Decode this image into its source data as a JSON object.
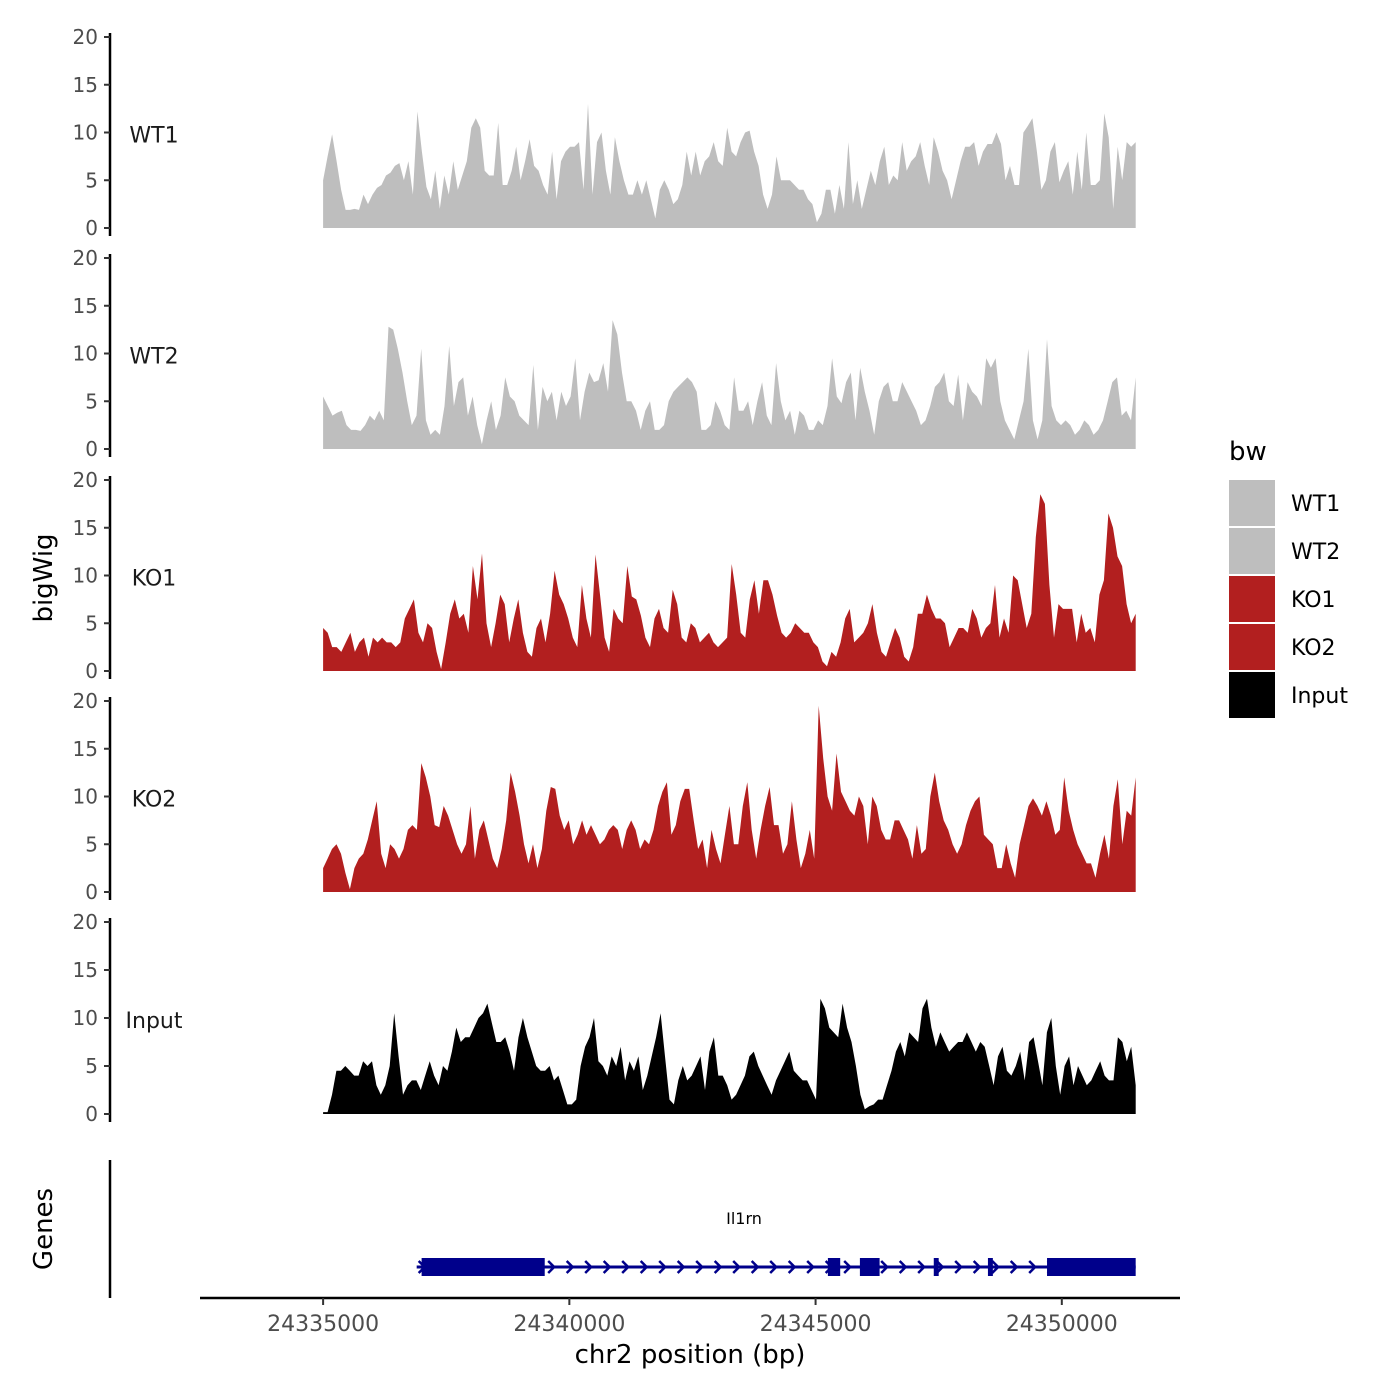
{
  "chart_data": {
    "type": "area",
    "title": "",
    "xlabel": "chr2 position (bp)",
    "ylabel": "bigWig",
    "genes_label": "Genes",
    "xlim": [
      24332500,
      24352400
    ],
    "x_ticks": [
      24335000,
      24340000,
      24345000,
      24350000
    ],
    "x_tick_labels": [
      "24335000",
      "24340000",
      "24345000",
      "24350000"
    ],
    "ylim": [
      0,
      20
    ],
    "y_ticks": [
      0,
      5,
      10,
      15,
      20
    ],
    "y_tick_labels": [
      "0",
      "5",
      "10",
      "15",
      "20"
    ],
    "legend": {
      "title": "bw",
      "position": "right",
      "entries": [
        {
          "label": "WT1",
          "color": "#bebebe"
        },
        {
          "label": "WT2",
          "color": "#bebebe"
        },
        {
          "label": "KO1",
          "color": "#b21f1f"
        },
        {
          "label": "KO2",
          "color": "#b21f1f"
        },
        {
          "label": "Input",
          "color": "#000000"
        }
      ]
    },
    "x_start": 24335000,
    "x_end": 24351500,
    "series": [
      {
        "name": "WT1",
        "color": "#bebebe",
        "values": [
          5,
          7.5,
          9.8,
          7,
          4,
          1.9,
          1.9,
          2,
          1.9,
          3.5,
          2.5,
          3.5,
          4.2,
          4.5,
          5.5,
          5.8,
          6.5,
          6.8,
          5,
          7,
          3.5,
          12.2,
          8,
          4.3,
          3,
          6,
          2,
          5.5,
          3.5,
          7,
          4,
          5.5,
          7,
          10.5,
          11.5,
          10.5,
          6,
          5.5,
          5.5,
          11,
          4.5,
          4.5,
          6,
          8.5,
          5,
          7,
          9.3,
          6.5,
          6,
          4.5,
          3.5,
          8,
          3,
          7,
          8,
          8.5,
          8.5,
          9,
          4,
          13,
          3.5,
          9,
          10,
          6,
          3.5,
          9.5,
          7,
          5,
          3.5,
          3.5,
          5,
          3.5,
          5,
          3,
          1,
          4,
          5,
          4,
          2.5,
          3,
          4.5,
          8,
          5.5,
          8,
          5.5,
          7,
          7.5,
          9,
          7,
          6.5,
          10.5,
          8,
          7.5,
          9,
          10,
          10.2,
          8,
          6.5,
          3.5,
          2,
          3.5,
          7.5,
          5,
          5,
          5,
          4.5,
          4,
          4,
          3,
          2.5,
          0.6,
          1.5,
          4,
          4,
          1.5,
          4.5,
          2,
          9,
          2.5,
          5,
          2,
          4,
          6,
          4.5,
          7,
          8.5,
          4.5,
          5.5,
          5,
          9,
          6,
          7,
          7.5,
          9,
          6.5,
          4.5,
          9.5,
          8,
          6,
          5,
          3,
          5,
          7,
          8.5,
          8.5,
          9,
          6.5,
          8,
          8.8,
          8.8,
          10,
          8.8,
          5,
          6.5,
          4.5,
          4.5,
          10,
          10.7,
          11.5,
          8,
          4,
          5,
          8,
          9,
          4.8,
          6,
          7,
          3.5,
          8,
          4,
          10,
          4.5,
          4.5,
          5,
          12,
          9.5,
          2,
          8.5,
          5,
          9,
          8.5,
          9
        ],
        "label_y": 10
      },
      {
        "name": "WT2",
        "color": "#bebebe",
        "values": [
          5.5,
          4.5,
          3.5,
          3.8,
          4,
          2.5,
          2,
          2,
          1.9,
          2.5,
          3.5,
          3,
          4,
          3,
          12.8,
          12.5,
          10.5,
          8,
          5,
          2.5,
          3.5,
          10.5,
          3,
          1.5,
          2,
          1.5,
          4.5,
          10.8,
          4.5,
          7,
          7.5,
          3.5,
          5.5,
          2.5,
          0.5,
          3,
          5,
          2,
          3.5,
          7.5,
          5.5,
          5,
          3.5,
          3,
          2.5,
          8.8,
          2,
          6.5,
          5,
          6,
          3,
          6,
          4.5,
          5.5,
          9.5,
          3,
          6,
          8,
          7,
          7.2,
          9,
          6,
          13.5,
          12,
          8,
          5,
          5,
          4,
          2,
          4,
          5,
          2,
          2,
          2.5,
          5,
          6,
          6.5,
          7,
          7.5,
          7,
          6,
          2,
          2,
          2.5,
          5,
          4,
          2.5,
          2,
          7.5,
          4,
          4,
          5,
          2.5,
          5,
          7,
          3.5,
          2.5,
          9,
          5,
          3,
          4,
          1.5,
          4,
          3.5,
          2,
          2,
          3,
          2.5,
          4.5,
          9.5,
          5.5,
          4.8,
          7,
          8,
          3,
          8.5,
          6,
          4,
          1.5,
          5,
          6.5,
          7,
          5,
          5,
          7,
          6,
          5,
          4,
          2.5,
          3,
          4.5,
          6.5,
          7,
          8,
          5,
          4.5,
          7.8,
          3,
          7,
          6,
          5.5,
          4.5,
          9.5,
          8.5,
          9.5,
          5,
          3,
          2,
          1,
          3,
          5,
          10.5,
          3,
          1,
          3,
          11.5,
          4.5,
          3,
          2.5,
          3,
          2.5,
          1.5,
          2,
          3,
          2.5,
          1.5,
          2,
          3,
          5,
          7,
          7.5,
          3.5,
          4,
          3,
          7.5
        ]
      },
      {
        "name": "KO1",
        "color": "#b21f1f",
        "values": [
          4.5,
          4,
          2.5,
          2.5,
          2,
          3,
          4,
          2,
          3,
          3.5,
          1.5,
          3.5,
          3,
          3.5,
          3,
          3,
          2.5,
          3,
          5.5,
          6.5,
          7.5,
          4,
          3,
          5,
          4.5,
          2,
          0.2,
          3,
          6,
          7.5,
          5.5,
          6,
          4,
          11,
          7.5,
          12.3,
          5,
          2.5,
          5,
          8,
          7,
          3,
          5.5,
          7.5,
          4,
          2,
          1.5,
          4.5,
          5.5,
          3,
          6,
          10.5,
          8,
          7,
          5.5,
          3.5,
          2.5,
          9,
          5.5,
          3.5,
          12.2,
          8,
          3.5,
          2,
          6.5,
          5.5,
          5,
          11,
          7.8,
          7.5,
          5.8,
          3.5,
          2.5,
          5.5,
          6.5,
          4.5,
          4,
          8.5,
          7,
          3.5,
          3,
          5,
          4.5,
          3,
          3.5,
          4,
          3,
          2.5,
          3,
          3.5,
          11.2,
          8,
          4,
          3.5,
          7.5,
          9.5,
          6,
          9.5,
          9.5,
          8,
          5.8,
          4,
          3.5,
          4,
          5,
          4.5,
          4,
          4,
          3,
          2.5,
          1,
          0.5,
          2,
          1.5,
          3,
          5.5,
          6.5,
          3,
          3.5,
          4,
          5,
          7,
          4,
          2,
          1.5,
          3,
          4.5,
          3.5,
          1.5,
          1,
          2.5,
          6,
          6,
          8,
          6.5,
          5.5,
          5.5,
          5,
          2.5,
          3.5,
          4.5,
          4.5,
          4,
          6.5,
          5.5,
          3.5,
          4.5,
          5,
          9,
          3.5,
          5.5,
          4,
          10,
          9.5,
          7,
          4.5,
          6,
          14,
          18.5,
          17.5,
          9,
          3.5,
          7,
          6.5,
          6.5,
          6.5,
          3,
          6,
          4,
          4.5,
          3,
          8,
          9.5,
          16.5,
          15,
          12,
          11,
          7,
          5,
          6
        ]
      },
      {
        "name": "KO2",
        "color": "#b21f1f",
        "values": [
          2.5,
          3.5,
          4.5,
          5,
          4,
          2,
          0.3,
          2.5,
          3.5,
          4,
          5.5,
          7.5,
          9.5,
          4,
          2.5,
          5,
          4.5,
          3.5,
          4.5,
          6.5,
          7,
          6.5,
          13.5,
          12,
          10,
          7,
          6.8,
          9,
          8,
          6.5,
          5,
          4,
          5,
          9,
          3.5,
          6.5,
          7.5,
          5.5,
          3.5,
          2.5,
          4.5,
          7.5,
          12.5,
          10.5,
          8,
          5,
          3,
          5,
          2.5,
          4.5,
          8.5,
          11,
          10.8,
          8,
          6.5,
          7.5,
          5,
          6,
          7.5,
          6,
          7,
          6,
          5,
          5.5,
          6.5,
          7,
          6.5,
          4.5,
          6.5,
          7.5,
          6.5,
          4.5,
          5.5,
          5,
          6.5,
          9,
          10.5,
          11.5,
          6,
          7,
          9.5,
          10.8,
          10.8,
          7.5,
          4.5,
          5.5,
          2.5,
          6.5,
          4.5,
          3,
          6,
          9,
          5,
          5,
          9,
          11.5,
          6.5,
          3.5,
          6.5,
          9,
          11,
          7,
          7,
          4,
          5,
          9.5,
          5.5,
          2.5,
          4,
          6.5,
          3.5,
          19.5,
          14,
          10,
          8.5,
          14.5,
          10.5,
          9.5,
          8.5,
          8,
          10,
          9,
          5,
          10,
          9,
          6.5,
          5.5,
          5.5,
          7.5,
          7.5,
          6.5,
          5.5,
          3.5,
          7,
          4,
          4.5,
          10,
          12.5,
          9.5,
          7.5,
          6.5,
          5,
          4,
          5,
          7,
          8.5,
          9.5,
          10,
          6,
          5.5,
          5,
          2.5,
          2.5,
          5,
          3,
          1.5,
          5,
          7,
          9,
          9.8,
          9,
          8,
          9.5,
          8,
          6,
          6.5,
          12,
          8.5,
          6.5,
          5,
          4,
          3,
          3,
          1.5,
          4,
          6,
          3.5,
          9,
          11.8,
          5,
          8.5,
          8,
          12
        ]
      },
      {
        "name": "Input",
        "color": "#000000",
        "values": [
          0.2,
          0.2,
          2,
          4.5,
          4.5,
          5,
          4.5,
          4,
          4,
          5.5,
          5,
          5.5,
          3,
          2,
          3,
          5,
          10.5,
          6,
          2,
          3,
          3.5,
          3.5,
          2.5,
          4,
          5.5,
          4,
          3,
          5,
          4.5,
          6.5,
          9,
          7.5,
          8,
          8,
          9,
          10,
          10.5,
          11.5,
          9.5,
          7.5,
          7.5,
          8,
          6.5,
          4.5,
          8,
          10,
          8,
          6.5,
          5,
          4.5,
          4.5,
          5,
          3.5,
          4,
          2.5,
          1,
          1,
          1.5,
          5,
          7,
          8,
          10,
          5.5,
          5,
          4,
          6,
          5,
          7,
          3.5,
          5.5,
          4.5,
          6,
          2.5,
          4,
          6,
          8,
          10.5,
          6,
          1.5,
          1,
          3.5,
          5,
          3.5,
          4,
          5,
          6,
          2.5,
          6.5,
          8,
          4,
          4,
          3,
          1.5,
          2,
          3,
          4,
          6,
          6.5,
          5,
          4,
          3,
          2,
          3.5,
          4.5,
          5.5,
          6.5,
          4.5,
          4,
          3.5,
          3.5,
          2.5,
          1.5,
          12,
          11,
          9,
          8.5,
          8,
          11.5,
          9,
          7.5,
          5,
          2,
          0.5,
          0.8,
          1,
          1.5,
          1.5,
          3,
          4.5,
          6.5,
          7.5,
          6,
          8.5,
          8,
          7.5,
          11,
          12,
          9,
          7,
          8.5,
          7.5,
          6.5,
          7,
          7.5,
          7.5,
          8.5,
          7.5,
          6.5,
          7.5,
          7,
          5,
          3,
          6,
          7,
          4.5,
          4,
          5,
          6.5,
          3.5,
          7.5,
          8,
          5.5,
          3,
          8.5,
          10,
          5,
          2,
          5,
          6,
          3,
          5,
          4,
          3,
          3.5,
          4.5,
          5.5,
          4,
          3.5,
          3.5,
          8,
          7.5,
          5.5,
          7,
          3
        ]
      }
    ],
    "gene": {
      "name": "Il1rn",
      "strand": "+",
      "start": 24336900,
      "end": 24351500,
      "color": "#00008b",
      "exons": [
        [
          24337000,
          24339500
        ],
        [
          24345250,
          24345500
        ],
        [
          24345900,
          24346300
        ],
        [
          24347400,
          24347500
        ],
        [
          24348500,
          24348600
        ],
        [
          24349700,
          24351500
        ]
      ]
    }
  }
}
